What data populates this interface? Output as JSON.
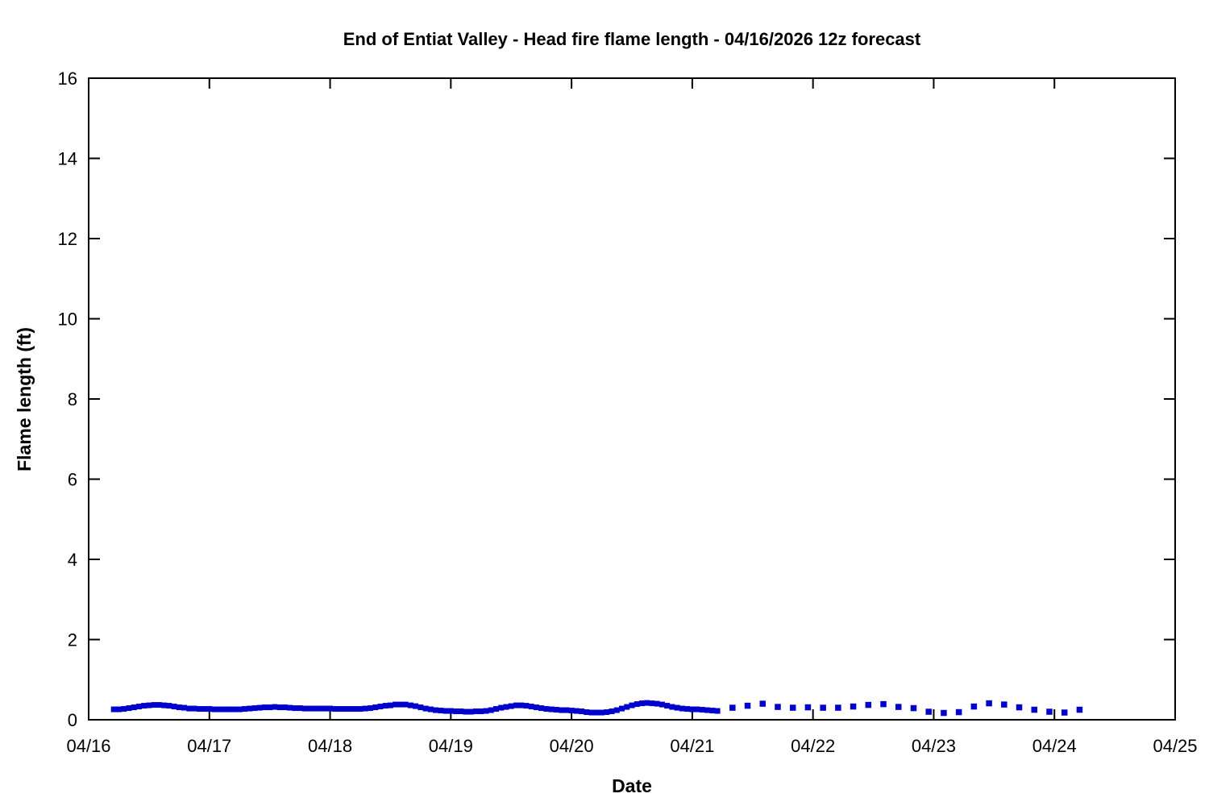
{
  "page": {
    "background_color": "#ffffff",
    "text_color": "#000000"
  },
  "chart_data": {
    "type": "scatter",
    "title": "End of Entiat Valley - Head fire flame length - 04/16/2026 12z forecast",
    "xlabel": "Date",
    "ylabel": "Flame length (ft)",
    "legend": "none",
    "grid": false,
    "marker_color": "#0000cd",
    "axis_color": "#000000",
    "x_unit": "hours since 04/16 00:00",
    "xlim_hours": [
      0,
      216
    ],
    "ylim": [
      0,
      16
    ],
    "x_ticks": [
      {
        "hour": 0,
        "label": "04/16"
      },
      {
        "hour": 24,
        "label": "04/17"
      },
      {
        "hour": 48,
        "label": "04/18"
      },
      {
        "hour": 72,
        "label": "04/19"
      },
      {
        "hour": 96,
        "label": "04/20"
      },
      {
        "hour": 120,
        "label": "04/21"
      },
      {
        "hour": 144,
        "label": "04/22"
      },
      {
        "hour": 168,
        "label": "04/23"
      },
      {
        "hour": 192,
        "label": "04/24"
      },
      {
        "hour": 216,
        "label": "04/25"
      }
    ],
    "y_ticks": [
      {
        "value": 0,
        "label": "0"
      },
      {
        "value": 2,
        "label": "2"
      },
      {
        "value": 4,
        "label": "4"
      },
      {
        "value": 6,
        "label": "6"
      },
      {
        "value": 8,
        "label": "8"
      },
      {
        "value": 10,
        "label": "10"
      },
      {
        "value": 12,
        "label": "12"
      },
      {
        "value": 14,
        "label": "14"
      },
      {
        "value": 16,
        "label": "16"
      }
    ],
    "series": [
      {
        "name": "hourly-forecast-segment",
        "marker": "square",
        "marker_size_px": 7,
        "interval_hours": 1,
        "t_hours": [
          5,
          6,
          7,
          8,
          9,
          10,
          11,
          12,
          13,
          14,
          15,
          16,
          17,
          18,
          19,
          20,
          21,
          22,
          23,
          24,
          25,
          26,
          27,
          28,
          29,
          30,
          31,
          32,
          33,
          34,
          35,
          36,
          37,
          38,
          39,
          40,
          41,
          42,
          43,
          44,
          45,
          46,
          47,
          48,
          49,
          50,
          51,
          52,
          53,
          54,
          55,
          56,
          57,
          58,
          59,
          60,
          61,
          62,
          63,
          64,
          65,
          66,
          67,
          68,
          69,
          70,
          71,
          72,
          73,
          74,
          75,
          76,
          77,
          78,
          79,
          80,
          81,
          82,
          83,
          84,
          85,
          86,
          87,
          88,
          89,
          90,
          91,
          92,
          93,
          94,
          95,
          96,
          97,
          98,
          99,
          100,
          101,
          102,
          103,
          104,
          105,
          106,
          107,
          108,
          109,
          110,
          111,
          112,
          113,
          114,
          115,
          116,
          117,
          118,
          119,
          120,
          121,
          122,
          123,
          124,
          125
        ],
        "values_ft": [
          0.26,
          0.26,
          0.27,
          0.29,
          0.31,
          0.33,
          0.35,
          0.36,
          0.37,
          0.37,
          0.36,
          0.35,
          0.33,
          0.31,
          0.3,
          0.28,
          0.28,
          0.27,
          0.27,
          0.27,
          0.26,
          0.26,
          0.26,
          0.26,
          0.26,
          0.26,
          0.27,
          0.28,
          0.29,
          0.3,
          0.31,
          0.31,
          0.32,
          0.31,
          0.31,
          0.3,
          0.29,
          0.29,
          0.28,
          0.28,
          0.28,
          0.28,
          0.28,
          0.28,
          0.27,
          0.27,
          0.27,
          0.27,
          0.27,
          0.27,
          0.28,
          0.29,
          0.31,
          0.33,
          0.35,
          0.36,
          0.38,
          0.38,
          0.38,
          0.36,
          0.34,
          0.31,
          0.28,
          0.26,
          0.24,
          0.23,
          0.22,
          0.22,
          0.21,
          0.21,
          0.2,
          0.2,
          0.21,
          0.21,
          0.22,
          0.24,
          0.27,
          0.3,
          0.32,
          0.34,
          0.36,
          0.36,
          0.35,
          0.33,
          0.31,
          0.29,
          0.27,
          0.26,
          0.25,
          0.24,
          0.24,
          0.23,
          0.22,
          0.21,
          0.19,
          0.18,
          0.18,
          0.18,
          0.19,
          0.21,
          0.24,
          0.28,
          0.32,
          0.36,
          0.39,
          0.41,
          0.42,
          0.41,
          0.4,
          0.38,
          0.35,
          0.32,
          0.3,
          0.28,
          0.27,
          0.26,
          0.26,
          0.25,
          0.24,
          0.23,
          0.22
        ]
      },
      {
        "name": "extended-3-hourly-forecast-segment",
        "marker": "square",
        "marker_size_px": 7.5,
        "interval_hours": 3,
        "t_hours": [
          128,
          131,
          134,
          137,
          140,
          143,
          146,
          149,
          152,
          155,
          158,
          161,
          164,
          167,
          170,
          173,
          176,
          179,
          182,
          185,
          188,
          191,
          194,
          197
        ],
        "values_ft": [
          0.3,
          0.35,
          0.4,
          0.32,
          0.3,
          0.31,
          0.3,
          0.3,
          0.33,
          0.37,
          0.39,
          0.32,
          0.29,
          0.2,
          0.17,
          0.19,
          0.33,
          0.41,
          0.38,
          0.31,
          0.25,
          0.2,
          0.18,
          0.25
        ]
      }
    ]
  }
}
